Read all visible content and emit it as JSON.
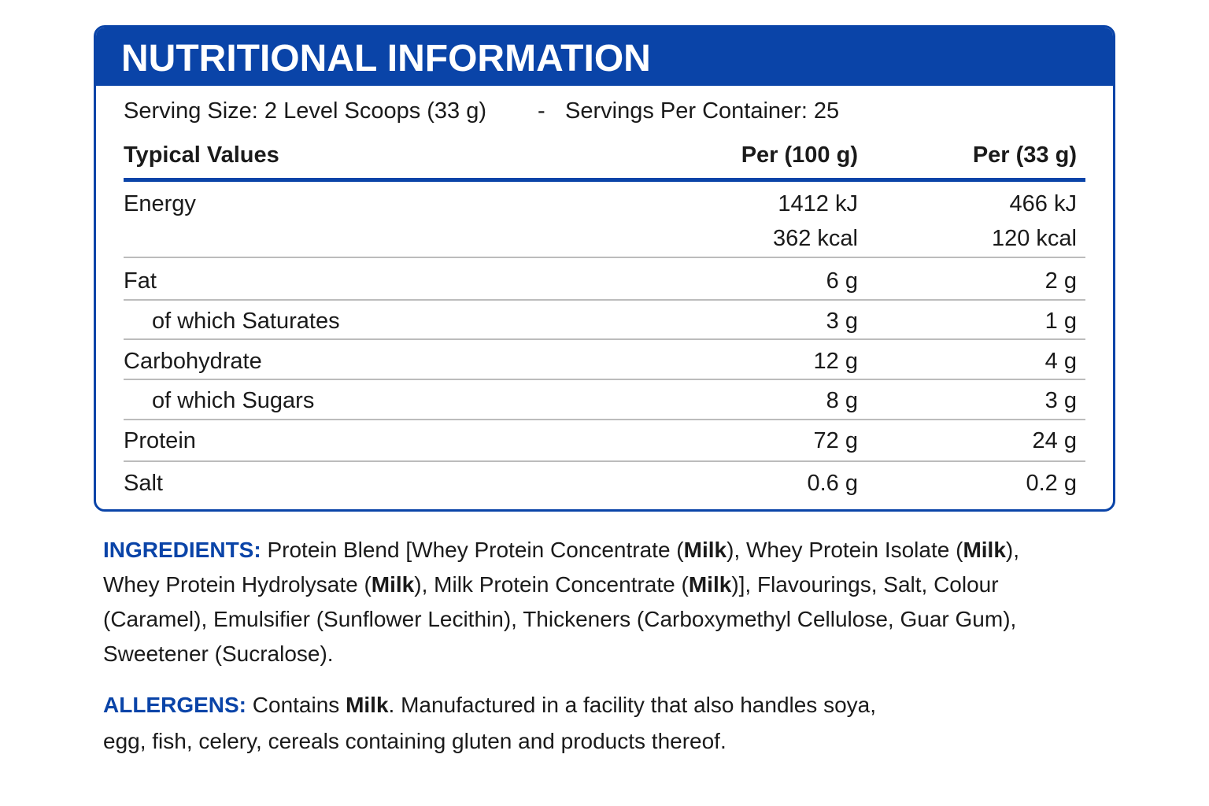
{
  "title": "NUTRITIONAL INFORMATION",
  "serving": {
    "serving_size": "Serving Size: 2 Level Scoops (33 g)",
    "separator": "-",
    "servings_per_container": "Servings Per Container: 25"
  },
  "table": {
    "header": [
      "Typical Values",
      "Per (100 g)",
      "Per (33 g)"
    ],
    "rows": [
      [
        "Energy",
        "1412 kJ",
        "466 kJ"
      ],
      [
        null,
        "362 kcal",
        "120 kcal"
      ],
      [
        "Fat",
        "6 g",
        "2 g"
      ],
      [
        "of which Saturates",
        "3 g",
        "1 g"
      ],
      [
        "Carbohydrate",
        "12 g",
        "4 g"
      ],
      [
        "of which Sugars",
        "8 g",
        "3 g"
      ],
      [
        "Protein",
        "72 g",
        "24 g"
      ],
      [
        "Salt",
        "0.6 g",
        "0.2 g"
      ]
    ]
  },
  "ingredients": {
    "label": "INGREDIENTS:",
    "parts": [
      " Protein Blend [Whey Protein Concentrate (",
      "Milk",
      "), Whey Protein Isolate (",
      "Milk",
      "),",
      "Whey Protein Hydrolysate (",
      "Milk",
      "), Milk Protein Concentrate (",
      "Milk",
      ")], Flavourings, Salt, Colour",
      "(Caramel), Emulsifier (Sunflower Lecithin), Thickeners (Carboxymethyl Cellulose, Guar Gum),",
      "Sweetener (Sucralose)."
    ]
  },
  "allergens": {
    "label": "ALLERGENS:",
    "parts": [
      " Contains ",
      "Milk",
      ". Manufactured in a facility that also handles soya,",
      "egg, fish, celery, cereals containing gluten and products thereof."
    ]
  }
}
